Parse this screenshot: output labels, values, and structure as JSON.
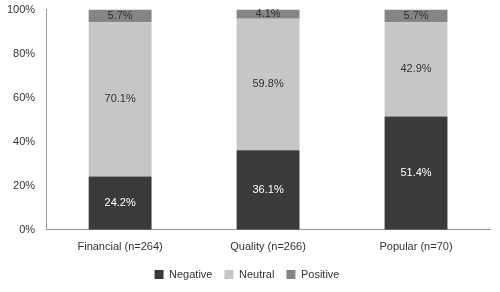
{
  "chart_data": {
    "type": "bar",
    "stacked": true,
    "grid": false,
    "legend": "bottom",
    "data_labels": true,
    "categories": [
      "Financial (n=264)",
      "Quality (n=266)",
      "Popular (n=70)"
    ],
    "series": [
      {
        "name": "Negative",
        "color": "#3a3a3a",
        "values": [
          24.2,
          36.1,
          51.4
        ],
        "value_labels": [
          "24.2%",
          "36.1%",
          "51.4%"
        ]
      },
      {
        "name": "Neutral",
        "color": "#c6c6c6",
        "values": [
          70.1,
          59.8,
          42.9
        ],
        "value_labels": [
          "70.1%",
          "59.8%",
          "42.9%"
        ]
      },
      {
        "name": "Positive",
        "color": "#858585",
        "values": [
          5.7,
          4.1,
          5.7
        ],
        "value_labels": [
          "5.7%",
          "4.1%",
          "5.7%"
        ]
      }
    ],
    "ylim": [
      0,
      100
    ],
    "yticks": [
      {
        "value": 0,
        "label": "0%"
      },
      {
        "value": 20,
        "label": "20%"
      },
      {
        "value": 40,
        "label": "40%"
      },
      {
        "value": 60,
        "label": "60%"
      },
      {
        "value": 80,
        "label": "80%"
      },
      {
        "value": 100,
        "label": "100%"
      }
    ]
  }
}
